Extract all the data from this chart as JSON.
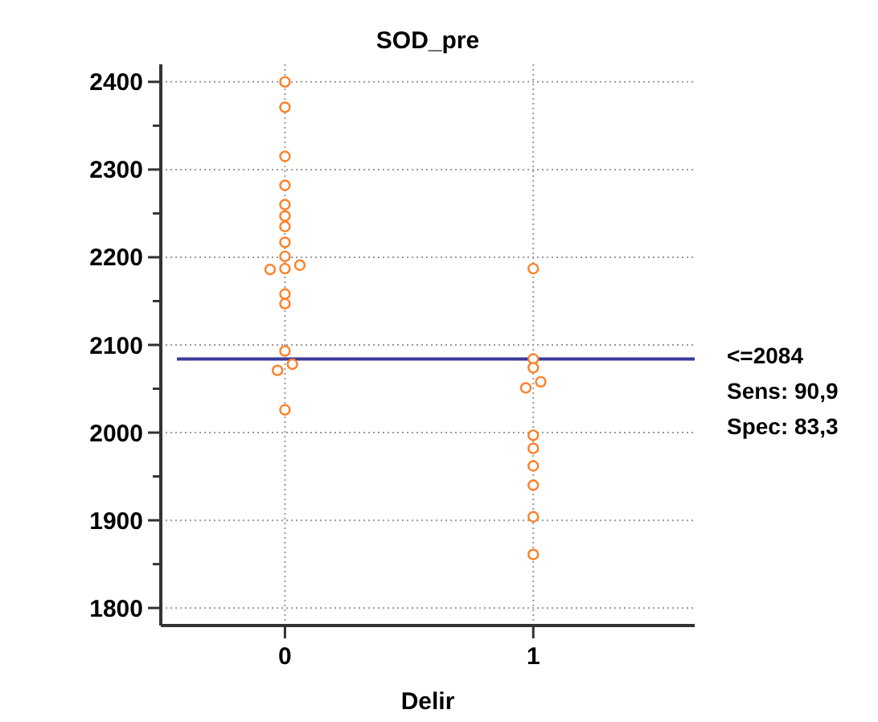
{
  "chart_data": {
    "type": "scatter",
    "title": "SOD_pre",
    "xlabel": "Delir",
    "xlim": [
      -0.5,
      1.65
    ],
    "xticks": [
      0,
      1
    ],
    "ylim": [
      1780,
      2420
    ],
    "yticks": [
      1800,
      {
        "value": 1850,
        "label": null
      },
      1900,
      {
        "value": 1950,
        "label": null
      },
      2000,
      {
        "value": 2050,
        "label": null
      },
      2100,
      {
        "value": 2150,
        "label": null
      },
      2200,
      {
        "value": 2250,
        "label": null
      },
      2300,
      {
        "value": 2350,
        "label": null
      },
      2400
    ],
    "grid": true,
    "marker": "circle",
    "series": [
      {
        "color": "#ff7f27",
        "x": [
          0,
          0,
          0,
          0,
          0,
          0,
          0,
          0,
          0,
          -0.06,
          0,
          0.06,
          0,
          0,
          0,
          0.03,
          -0.03,
          0
        ],
        "values": [
          2400,
          2371,
          2315,
          2282,
          2260,
          2247,
          2235,
          2217,
          2201,
          2186,
          2187,
          2191,
          2158,
          2147,
          2093,
          2078,
          2071,
          2026
        ]
      },
      {
        "color": "#ff7f27",
        "x": [
          1,
          1,
          1,
          1.03,
          0.97,
          1,
          1,
          1,
          1,
          1,
          1
        ],
        "values": [
          2187,
          2084,
          2074,
          2058,
          2051,
          1997,
          1982,
          1962,
          1940,
          1904,
          1861
        ]
      }
    ],
    "ref_lines": [
      {
        "axis": "y",
        "value": 2084,
        "label": "<=2084",
        "color": "#3a3a9a"
      }
    ],
    "annotations": [
      "Sens: 90,9",
      "Spec: 83,3"
    ]
  }
}
